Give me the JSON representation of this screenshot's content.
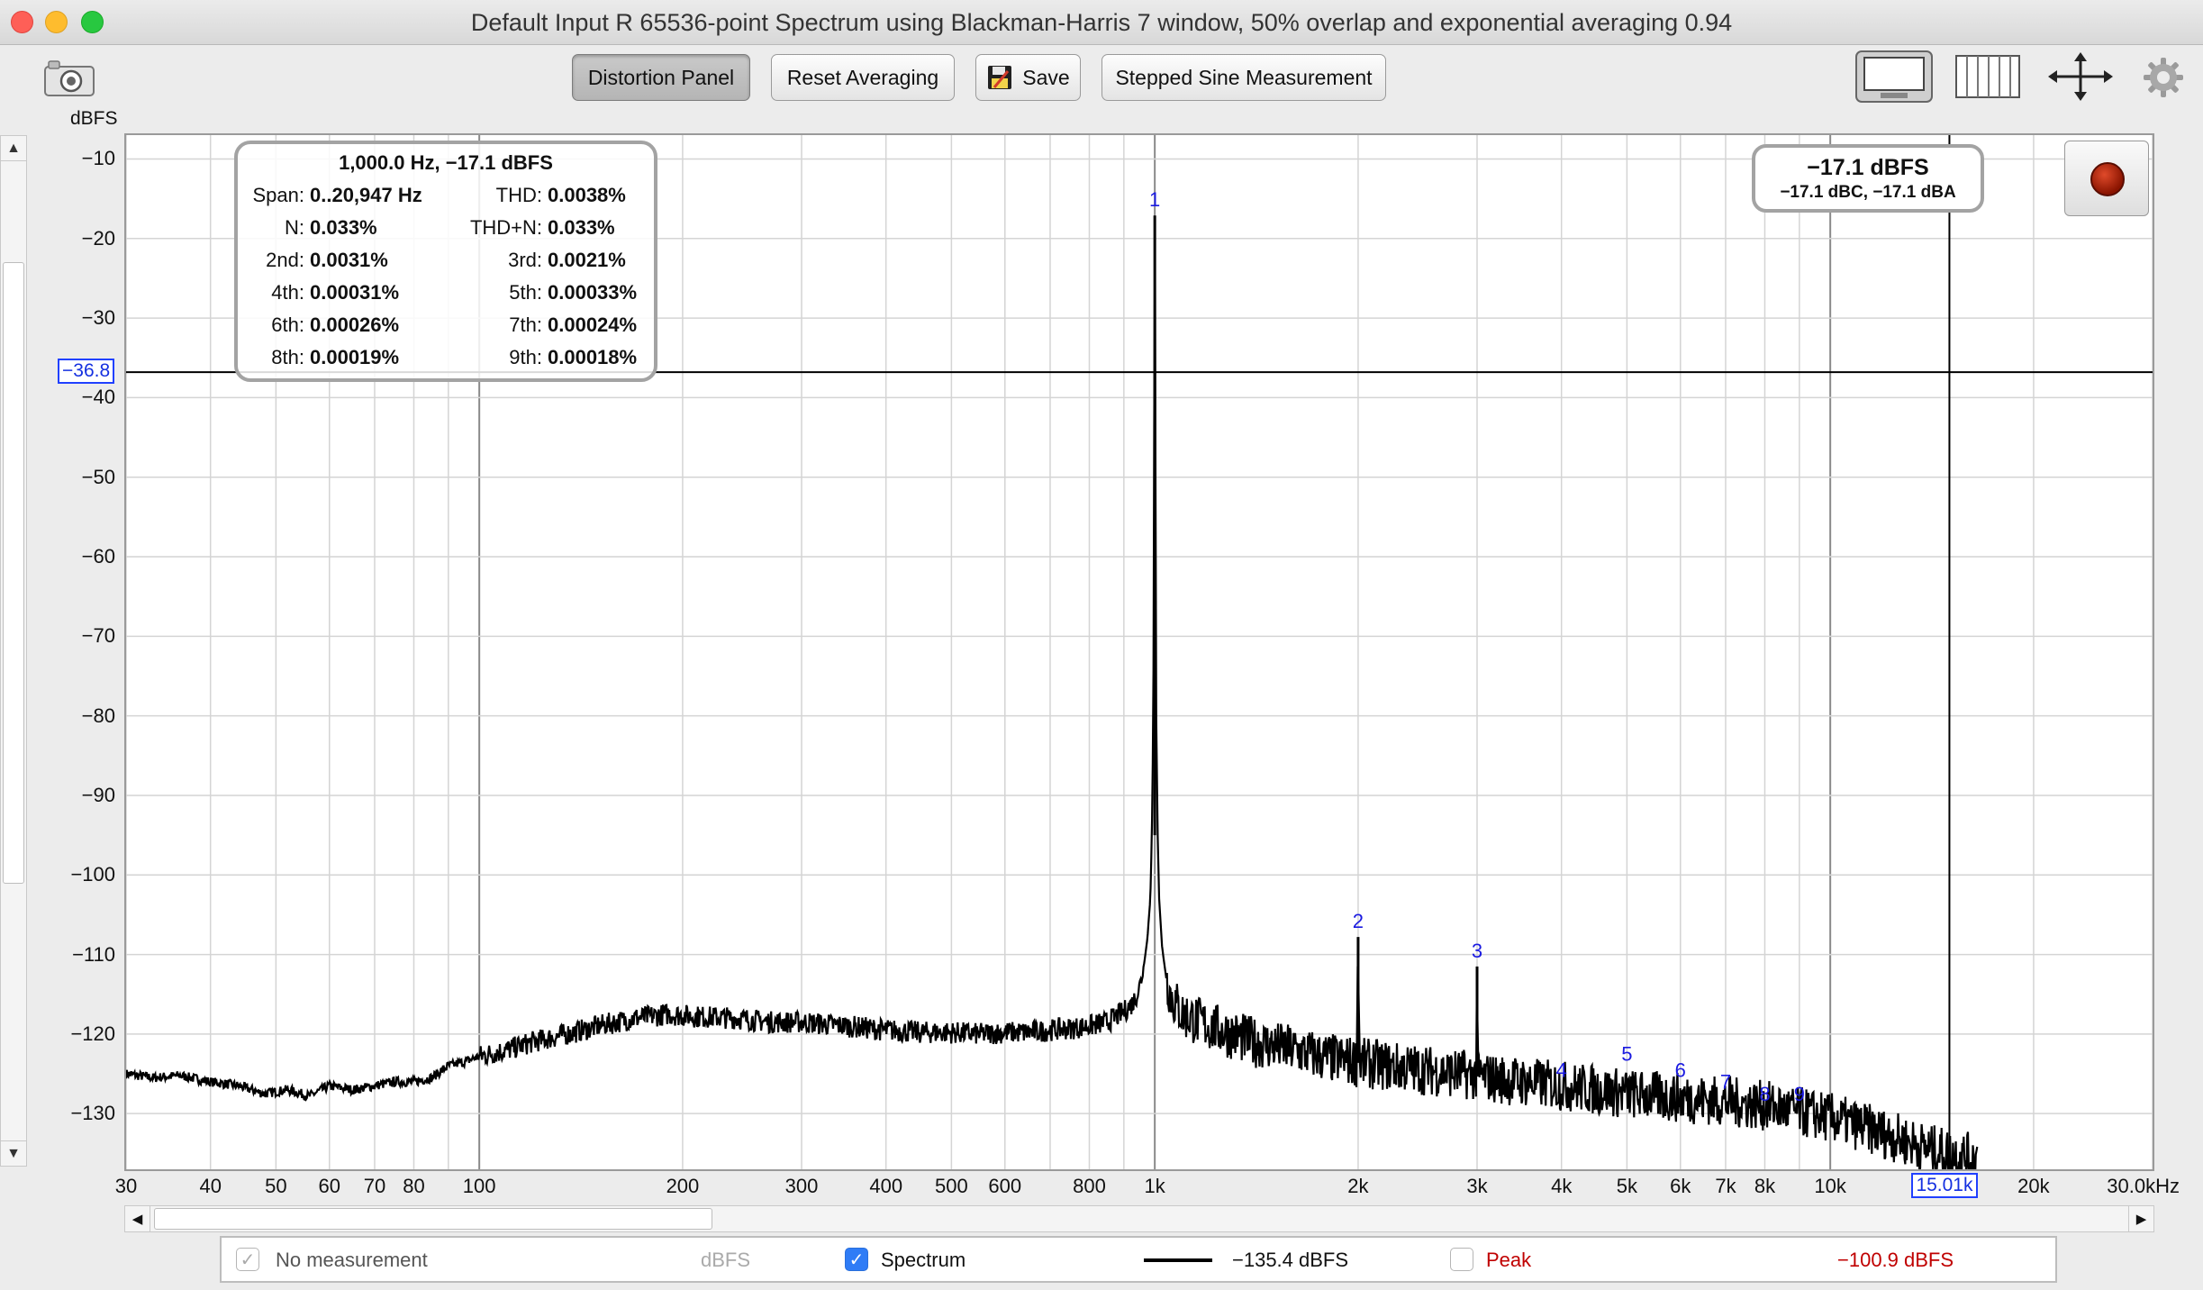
{
  "window": {
    "title": "Default Input R 65536-point Spectrum using Blackman-Harris 7 window, 50% overlap and exponential averaging 0.94"
  },
  "toolbar": {
    "distortion_panel": "Distortion Panel",
    "reset_averaging": "Reset Averaging",
    "save": "Save",
    "stepped_sine": "Stepped Sine Measurement"
  },
  "icons": {
    "camera": "camera-icon",
    "save": "save-disk-icon",
    "graph_view": "graph-view-icon",
    "columns_view": "columns-view-icon",
    "fit": "fit-arrows-icon",
    "settings": "gear-icon"
  },
  "distortion": {
    "header": "1,000.0 Hz, −17.1 dBFS",
    "rows": [
      {
        "l1": "Span:",
        "v1": "0..20,947 Hz",
        "l2": "THD:",
        "v2": "0.0038%"
      },
      {
        "l1": "N:",
        "v1": "0.033%",
        "l2": "THD+N:",
        "v2": "0.033%"
      },
      {
        "l1": "2nd:",
        "v1": "0.0031%",
        "l2": "3rd:",
        "v2": "0.0021%"
      },
      {
        "l1": "4th:",
        "v1": "0.00031%",
        "l2": "5th:",
        "v2": "0.00033%"
      },
      {
        "l1": "6th:",
        "v1": "0.00026%",
        "l2": "7th:",
        "v2": "0.00024%"
      },
      {
        "l1": "8th:",
        "v1": "0.00019%",
        "l2": "9th:",
        "v2": "0.00018%"
      }
    ]
  },
  "level": {
    "main": "−17.1 dBFS",
    "sub": "−17.1 dBC, −17.1 dBA"
  },
  "cursors": {
    "y_label": "−36.8",
    "y_value": -36.8,
    "x_label": "15.01k",
    "x_value": 15010
  },
  "legend": {
    "no_measurement": "No measurement",
    "no_measurement_unit": "dBFS",
    "spectrum": "Spectrum",
    "spectrum_value": "−135.4 dBFS",
    "peak": "Peak",
    "peak_value": "−100.9 dBFS",
    "spectrum_color": "#000000",
    "peak_color": "#c00000",
    "marker_color": "#1a1ae0"
  },
  "chart_data": {
    "type": "line",
    "ylabel": "dBFS",
    "xlabel": "",
    "xscale": "log",
    "xlim": [
      30,
      30000
    ],
    "ylim": [
      -137,
      -7
    ],
    "y_ticks": [
      -10,
      -20,
      -30,
      -40,
      -50,
      -60,
      -70,
      -80,
      -90,
      -100,
      -110,
      -120,
      -130
    ],
    "y_tick_labels": [
      "−10",
      "−20",
      "−30",
      "−40",
      "−50",
      "−60",
      "−70",
      "−80",
      "−90",
      "−100",
      "−110",
      "−120",
      "−130"
    ],
    "x_ticks": [
      30,
      40,
      50,
      60,
      70,
      80,
      100,
      200,
      300,
      400,
      500,
      600,
      800,
      1000,
      2000,
      3000,
      4000,
      5000,
      6000,
      7000,
      8000,
      10000,
      20000,
      30000
    ],
    "x_tick_labels": [
      "30",
      "40",
      "50",
      "60",
      "70",
      "80",
      "100",
      "200",
      "300",
      "400",
      "500",
      "600",
      "800",
      "1k",
      "2k",
      "3k",
      "4k",
      "5k",
      "6k",
      "7k",
      "8k",
      "10k",
      "20k",
      "30.0kHz"
    ],
    "grid": true,
    "series": [
      {
        "name": "Spectrum",
        "x": [
          30,
          33,
          36,
          40,
          44,
          48,
          52,
          56,
          60,
          65,
          70,
          75,
          80,
          85,
          90,
          95,
          100,
          110,
          120,
          135,
          150,
          170,
          190,
          210,
          240,
          270,
          300,
          350,
          400,
          450,
          500,
          550,
          600,
          650,
          700,
          750,
          800,
          850,
          900,
          930,
          950,
          965,
          975,
          985,
          990,
          995,
          1000,
          1005,
          1010,
          1015,
          1025,
          1040,
          1060,
          1100,
          1200,
          1400,
          1600,
          1800,
          1990,
          2000,
          2010,
          2200,
          2500,
          2990,
          3000,
          3010,
          3500,
          4000,
          4500,
          5000,
          5500,
          6000,
          7000,
          8000,
          9000,
          10000,
          11000,
          12000,
          13000,
          14000,
          15000,
          16000,
          16500
        ],
        "values": [
          -125,
          -125.5,
          -125.2,
          -126,
          -126.5,
          -127.5,
          -127,
          -127.8,
          -126.5,
          -127,
          -126.5,
          -126,
          -126,
          -125.5,
          -124,
          -123.5,
          -122.8,
          -122,
          -121,
          -120,
          -119,
          -118,
          -117.5,
          -117.8,
          -118,
          -118.5,
          -118.5,
          -119,
          -119.5,
          -119.8,
          -119.8,
          -120,
          -119.8,
          -119.8,
          -119.5,
          -119.3,
          -119,
          -118.5,
          -117.2,
          -116,
          -114,
          -111,
          -108,
          -103,
          -95,
          -80,
          -17.1,
          -80,
          -95,
          -103,
          -109,
          -113,
          -115.5,
          -117.5,
          -119,
          -121,
          -122,
          -123,
          -123.5,
          -107.8,
          -123.6,
          -124,
          -124.5,
          -125.2,
          -111.5,
          -125.3,
          -126,
          -126.5,
          -127,
          -127.5,
          -127.8,
          -128,
          -128.5,
          -129,
          -129.8,
          -130.5,
          -131.5,
          -132.5,
          -133.5,
          -134.5,
          -135,
          -135.5,
          -135.6
        ]
      }
    ],
    "harmonics": [
      {
        "label": "1",
        "x": 1000,
        "y": -17.1
      },
      {
        "label": "2",
        "x": 2000,
        "y": -107.8
      },
      {
        "label": "3",
        "x": 3000,
        "y": -111.5
      },
      {
        "label": "4",
        "x": 4000,
        "y": -126.5
      },
      {
        "label": "5",
        "x": 5000,
        "y": -124.5
      },
      {
        "label": "6",
        "x": 6000,
        "y": -126.5
      },
      {
        "label": "7",
        "x": 7000,
        "y": -128
      },
      {
        "label": "8",
        "x": 8000,
        "y": -129.5
      },
      {
        "label": "9",
        "x": 9000,
        "y": -129.5
      }
    ]
  }
}
